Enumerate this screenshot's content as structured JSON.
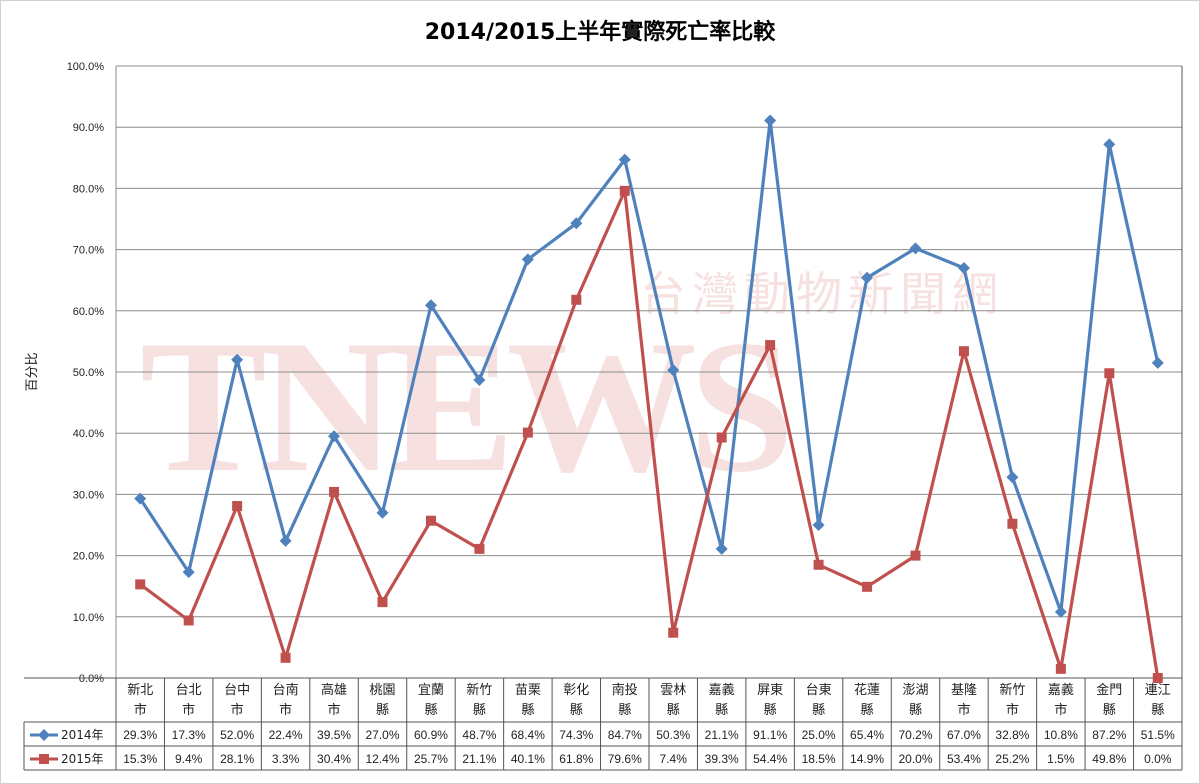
{
  "title": "2014/2015上半年實際死亡率比較",
  "watermark": {
    "logo_text": "TNEWS",
    "tagline": "台灣動物新聞網"
  },
  "colors": {
    "series_2014": "#4f81bd",
    "series_2015": "#c0504d",
    "grid": "#8c8c8c"
  },
  "chart_data": {
    "type": "line",
    "title": "2014/2015上半年實際死亡率比較",
    "ylabel": "百分比",
    "xlabel": "",
    "ylim": [
      0,
      100
    ],
    "y_ticks": [
      "0.0%",
      "10.0%",
      "20.0%",
      "30.0%",
      "40.0%",
      "50.0%",
      "60.0%",
      "70.0%",
      "80.0%",
      "90.0%",
      "100.0%"
    ],
    "grid": true,
    "legend_position": "data-table-left",
    "categories": [
      "新北市",
      "台北市",
      "台中市",
      "台南市",
      "高雄市",
      "桃園縣",
      "宜蘭縣",
      "新竹縣",
      "苗栗縣",
      "彰化縣",
      "南投縣",
      "雲林縣",
      "嘉義縣",
      "屏東縣",
      "台東縣",
      "花蓮縣",
      "澎湖縣",
      "基隆市",
      "新竹市",
      "嘉義市",
      "金門縣",
      "連江縣"
    ],
    "category_lines": [
      [
        "新北",
        "市"
      ],
      [
        "台北",
        "市"
      ],
      [
        "台中",
        "市"
      ],
      [
        "台南",
        "市"
      ],
      [
        "高雄",
        "市"
      ],
      [
        "桃園",
        "縣"
      ],
      [
        "宜蘭",
        "縣"
      ],
      [
        "新竹",
        "縣"
      ],
      [
        "苗栗",
        "縣"
      ],
      [
        "彰化",
        "縣"
      ],
      [
        "南投",
        "縣"
      ],
      [
        "雲林",
        "縣"
      ],
      [
        "嘉義",
        "縣"
      ],
      [
        "屏東",
        "縣"
      ],
      [
        "台東",
        "縣"
      ],
      [
        "花蓮",
        "縣"
      ],
      [
        "澎湖",
        "縣"
      ],
      [
        "基隆",
        "市"
      ],
      [
        "新竹",
        "市"
      ],
      [
        "嘉義",
        "市"
      ],
      [
        "金門",
        "縣"
      ],
      [
        "連江",
        "縣"
      ]
    ],
    "series": [
      {
        "name": "2014年",
        "marker": "diamond",
        "color": "#4f81bd",
        "values": [
          29.3,
          17.3,
          52.0,
          22.4,
          39.5,
          27.0,
          60.9,
          48.7,
          68.4,
          74.3,
          84.7,
          50.3,
          21.1,
          91.1,
          25.0,
          65.4,
          70.2,
          67.0,
          32.8,
          10.8,
          87.2,
          51.5
        ],
        "labels": [
          "29.3%",
          "17.3%",
          "52.0%",
          "22.4%",
          "39.5%",
          "27.0%",
          "60.9%",
          "48.7%",
          "68.4%",
          "74.3%",
          "84.7%",
          "50.3%",
          "21.1%",
          "91.1%",
          "25.0%",
          "65.4%",
          "70.2%",
          "67.0%",
          "32.8%",
          "10.8%",
          "87.2%",
          "51.5%"
        ]
      },
      {
        "name": "2015年",
        "marker": "square",
        "color": "#c0504d",
        "values": [
          15.3,
          9.4,
          28.1,
          3.3,
          30.4,
          12.4,
          25.7,
          21.1,
          40.1,
          61.8,
          79.6,
          7.4,
          39.3,
          54.4,
          18.5,
          14.9,
          20.0,
          53.4,
          25.2,
          1.5,
          49.8,
          0.0
        ],
        "labels": [
          "15.3%",
          "9.4%",
          "28.1%",
          "3.3%",
          "30.4%",
          "12.4%",
          "25.7%",
          "21.1%",
          "40.1%",
          "61.8%",
          "79.6%",
          "7.4%",
          "39.3%",
          "54.4%",
          "18.5%",
          "14.9%",
          "20.0%",
          "53.4%",
          "25.2%",
          "1.5%",
          "49.8%",
          "0.0%"
        ]
      }
    ]
  }
}
